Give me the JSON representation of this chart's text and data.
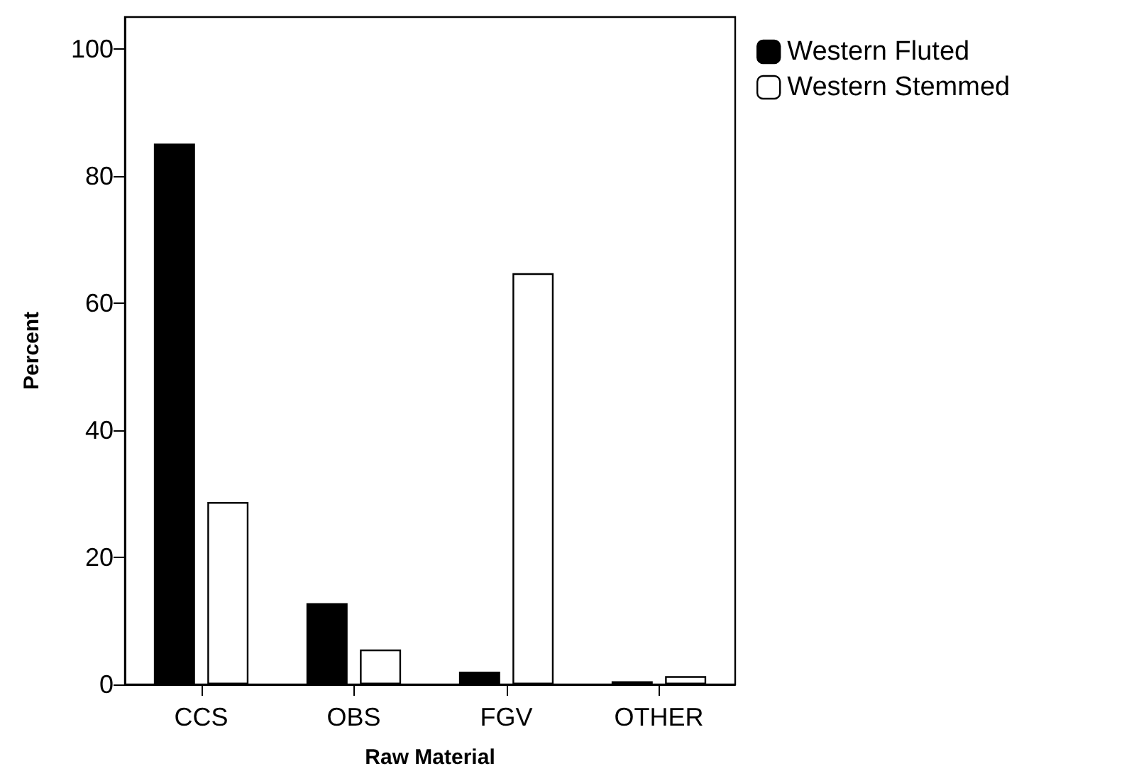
{
  "chart_data": {
    "type": "bar",
    "xlabel": "Raw Material",
    "ylabel": "Percent",
    "categories": [
      "CCS",
      "OBS",
      "FGV",
      "OTHER"
    ],
    "series": [
      {
        "name": "Western Fluted",
        "color": "#000000",
        "values": [
          85.1,
          12.8,
          2.0,
          0.5
        ]
      },
      {
        "name": "Western Stemmed",
        "color": "#ffffff",
        "values": [
          28.7,
          5.5,
          64.7,
          1.3
        ]
      }
    ],
    "ylim": [
      0,
      105
    ],
    "yticks": [
      0,
      20,
      40,
      60,
      80,
      100
    ],
    "grid": false,
    "legend": "top right"
  }
}
